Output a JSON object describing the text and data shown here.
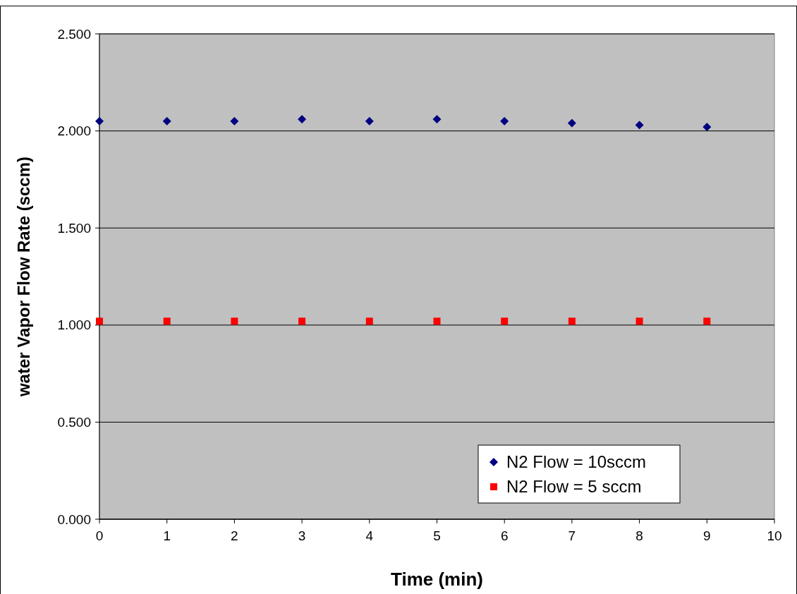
{
  "chart_data": {
    "type": "scatter",
    "xlabel": "Time (min)",
    "ylabel": "water Vapor Flow Rate (sccm)",
    "x": [
      0,
      1,
      2,
      3,
      4,
      5,
      6,
      7,
      8,
      9
    ],
    "series": [
      {
        "name": "N2 Flow = 10sccm",
        "color": "#000080",
        "marker": "diamond",
        "values": [
          2.05,
          2.05,
          2.05,
          2.06,
          2.05,
          2.06,
          2.05,
          2.04,
          2.03,
          2.02
        ]
      },
      {
        "name": "N2 Flow = 5 sccm",
        "color": "#ff0000",
        "marker": "square",
        "values": [
          1.02,
          1.02,
          1.02,
          1.02,
          1.02,
          1.02,
          1.02,
          1.02,
          1.02,
          1.02
        ]
      }
    ],
    "xlim": [
      0,
      10
    ],
    "xticks": [
      0,
      1,
      2,
      3,
      4,
      5,
      6,
      7,
      8,
      9,
      10
    ],
    "ylim": [
      0,
      2.5
    ],
    "yticks": [
      {
        "value": 0,
        "label": "0.000"
      },
      {
        "value": 0.5,
        "label": "0.500"
      },
      {
        "value": 1,
        "label": "1.000"
      },
      {
        "value": 1.5,
        "label": "1.500"
      },
      {
        "value": 2,
        "label": "2.000"
      },
      {
        "value": 2.5,
        "label": "2.500"
      }
    ],
    "grid": "y",
    "legend": "bottom right"
  }
}
